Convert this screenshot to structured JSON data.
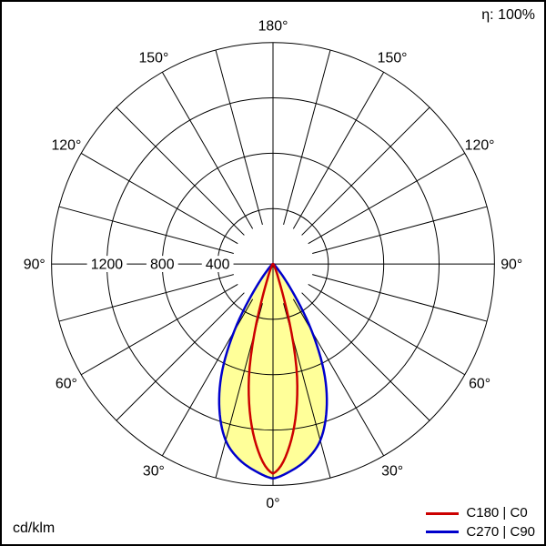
{
  "header": {
    "efficiency": "η: 100%"
  },
  "footer": {
    "unit": "cd/klm"
  },
  "chart_data": {
    "type": "polar",
    "subtype": "photometric-intensity-distribution",
    "unit": "cd/klm",
    "efficiency": "η: 100%",
    "zero_direction": "down",
    "angle_labels": [
      0,
      30,
      60,
      90,
      120,
      150,
      180
    ],
    "angle_grid_step_deg": 15,
    "radial_ticks": [
      400,
      800,
      1200
    ],
    "r_max": 1600,
    "grid": true,
    "legend_position": "bottom-right",
    "fill_color": "#ffff99",
    "grid_color": "#000000",
    "series": [
      {
        "name": "C180 | C0",
        "color": "#cc0000",
        "gamma": [
          0,
          2.5,
          5,
          7.5,
          10,
          12.5,
          15,
          17.5,
          20,
          25,
          30,
          40,
          60,
          90
        ],
        "values": [
          1515,
          1450,
          1330,
          1180,
          1000,
          790,
          520,
          260,
          120,
          45,
          20,
          8,
          3,
          1
        ]
      },
      {
        "name": "C270 | C90",
        "color": "#0000cc",
        "gamma": [
          0,
          5,
          10,
          15,
          20,
          25,
          30,
          35,
          40,
          45,
          50,
          60,
          75,
          90
        ],
        "values": [
          1550,
          1500,
          1430,
          1320,
          1130,
          880,
          560,
          250,
          90,
          40,
          20,
          8,
          3,
          1
        ]
      }
    ]
  }
}
